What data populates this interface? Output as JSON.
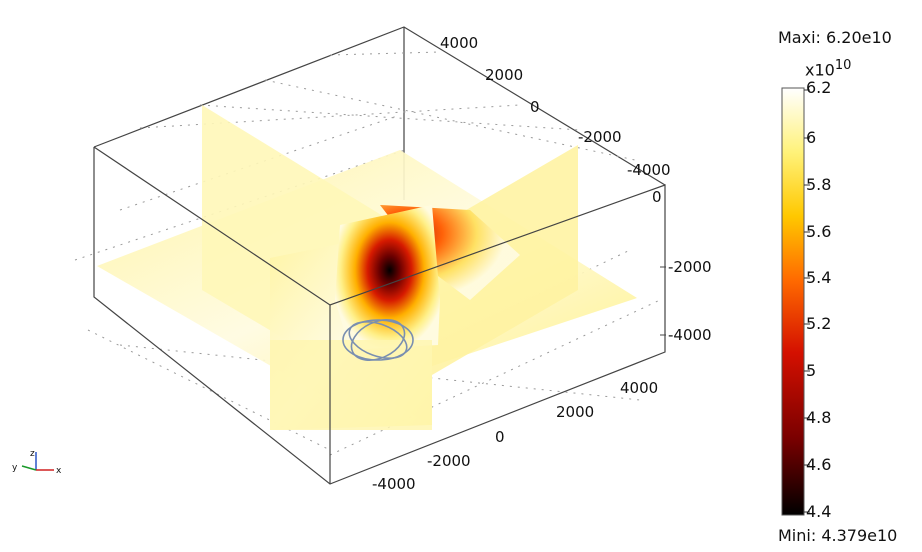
{
  "colorbar": {
    "max_label": "Maxi: 6.20e10",
    "min_label": "Mini: 4.379e10",
    "exponent_base": "x10",
    "exponent_power": "10",
    "ticks": [
      "6.2",
      "6",
      "5.8",
      "5.6",
      "5.4",
      "5.2",
      "5",
      "4.8",
      "4.6",
      "4.4"
    ],
    "colors": [
      "#000000",
      "#7a0000",
      "#d41000",
      "#ff6a00",
      "#ffc800",
      "#fff27a",
      "#ffffff"
    ]
  },
  "axes": {
    "back_ticks": [
      "4000",
      "2000",
      "0",
      "-2000",
      "-4000"
    ],
    "right_ticks": [
      "0",
      "-2000",
      "-4000"
    ],
    "front_ticks": [
      "4000",
      "2000",
      "0",
      "-2000",
      "-4000"
    ],
    "triad": {
      "x": "x",
      "y": "y",
      "z": "z"
    }
  }
}
